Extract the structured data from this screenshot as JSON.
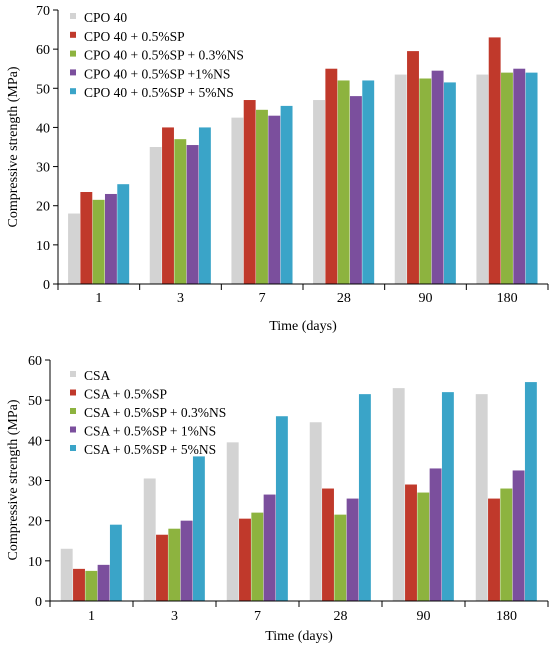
{
  "chart_data": [
    {
      "type": "bar",
      "xlabel": "Time (days)",
      "ylabel": "Compressive strength (MPa)",
      "ylim": [
        0,
        70
      ],
      "yticks": [
        0,
        10,
        20,
        30,
        40,
        50,
        60,
        70
      ],
      "grid": false,
      "legend_position": "top-left",
      "categories": [
        "1",
        "3",
        "7",
        "28",
        "90",
        "180"
      ],
      "series": [
        {
          "name": "CPO 40",
          "color": "#d3d3d3",
          "values": [
            18,
            35,
            42.5,
            47,
            53.5,
            53.5
          ]
        },
        {
          "name": "CPO 40 + 0.5%SP",
          "color": "#c0392b",
          "values": [
            23.5,
            40,
            47,
            55,
            59.5,
            63
          ]
        },
        {
          "name": "CPO 40 + 0.5%SP + 0.3%NS",
          "color": "#8db33f",
          "values": [
            21.5,
            37,
            44.5,
            52,
            52.5,
            54
          ]
        },
        {
          "name": "CPO 40 + 0.5%SP +1%NS",
          "color": "#7b4f9d",
          "values": [
            23,
            35.5,
            43,
            48,
            54.5,
            55
          ]
        },
        {
          "name": "CPO 40 + 0.5%SP + 5%NS",
          "color": "#3aa4c8",
          "values": [
            25.5,
            40,
            45.5,
            52,
            51.5,
            54
          ]
        }
      ]
    },
    {
      "type": "bar",
      "xlabel": "Time (days)",
      "ylabel": "Compressive strength (MPa)",
      "ylim": [
        0,
        60
      ],
      "yticks": [
        0,
        10,
        20,
        30,
        40,
        50,
        60
      ],
      "grid": false,
      "legend_position": "top-left",
      "categories": [
        "1",
        "3",
        "7",
        "28",
        "90",
        "180"
      ],
      "series": [
        {
          "name": "CSA",
          "color": "#d3d3d3",
          "values": [
            13,
            30.5,
            39.5,
            44.5,
            53,
            51.5
          ]
        },
        {
          "name": "CSA + 0.5%SP",
          "color": "#c0392b",
          "values": [
            8,
            16.5,
            20.5,
            28,
            29,
            25.5
          ]
        },
        {
          "name": "CSA + 0.5%SP + 0.3%NS",
          "color": "#8db33f",
          "values": [
            7.5,
            18,
            22,
            21.5,
            27,
            28
          ]
        },
        {
          "name": "CSA + 0.5%SP + 1%NS",
          "color": "#7b4f9d",
          "values": [
            9,
            20,
            26.5,
            25.5,
            33,
            32.5
          ]
        },
        {
          "name": "CSA + 0.5%SP + 5%NS",
          "color": "#3aa4c8",
          "values": [
            19,
            36,
            46,
            51.5,
            52,
            54.5
          ]
        }
      ]
    }
  ]
}
